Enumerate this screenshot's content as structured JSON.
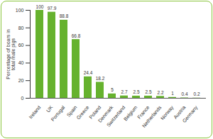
{
  "chart_data": {
    "type": "bar",
    "y_label": "Percentage of boars in total male pigs",
    "categories": [
      "Ireland",
      "UK",
      "Portugal",
      "Spain",
      "Greece",
      "Poland",
      "Denmark",
      "Switzerland",
      "Belgium",
      "France",
      "Netherlands",
      "Norway",
      "Austria",
      "Germany"
    ],
    "values": [
      100,
      97.9,
      88.8,
      66.8,
      24.4,
      18.2,
      5,
      2.7,
      2.5,
      2.5,
      2.2,
      1,
      0.4,
      0.2
    ],
    "color": "#66b22e",
    "ylim": [
      0,
      100
    ],
    "yticks": [
      0,
      20,
      40,
      60,
      80,
      100
    ],
    "grid": false,
    "data_labels": true
  }
}
